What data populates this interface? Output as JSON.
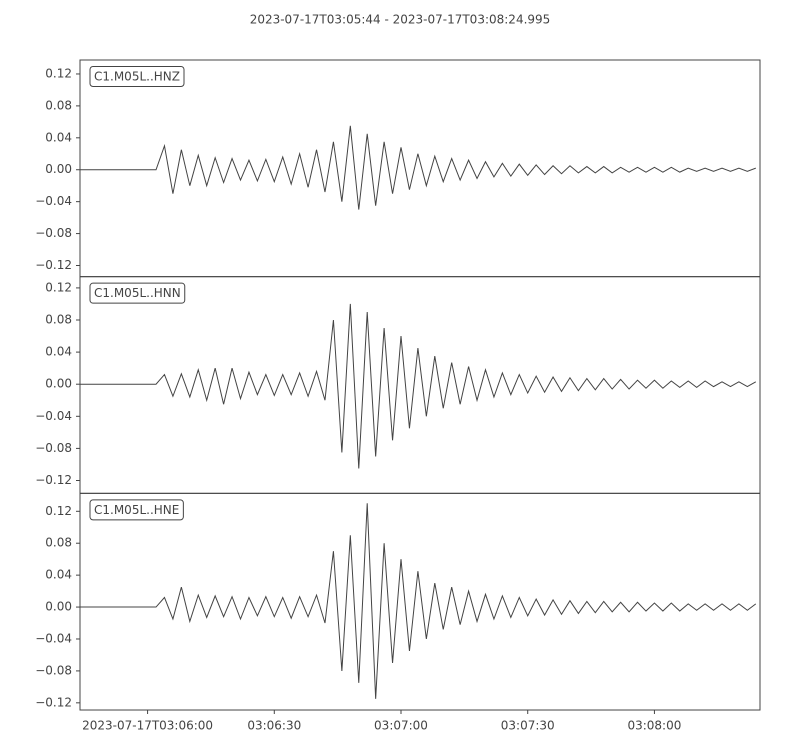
{
  "chart_data": {
    "type": "line",
    "title": "2023-07-17T03:05:44  -  2023-07-17T03:08:24.995",
    "xlim": [
      "2023-07-17T03:05:44",
      "2023-07-17T03:08:24.995"
    ],
    "xticks": [
      {
        "value": "2023-07-17T03:06:00",
        "label": "2023-07-17T03:06:00"
      },
      {
        "value": "2023-07-17T03:06:30",
        "label": "03:06:30"
      },
      {
        "value": "2023-07-17T03:07:00",
        "label": "03:07:00"
      },
      {
        "value": "2023-07-17T03:07:30",
        "label": "03:07:30"
      },
      {
        "value": "2023-07-17T03:08:00",
        "label": "03:08:00"
      }
    ],
    "x": [
      "2023-07-17T03:05:44",
      "2023-07-17T03:05:46",
      "2023-07-17T03:05:48",
      "2023-07-17T03:05:50",
      "2023-07-17T03:05:52",
      "2023-07-17T03:05:54",
      "2023-07-17T03:05:56",
      "2023-07-17T03:05:58",
      "2023-07-17T03:06:00",
      "2023-07-17T03:06:02",
      "2023-07-17T03:06:04",
      "2023-07-17T03:06:06",
      "2023-07-17T03:06:08",
      "2023-07-17T03:06:10",
      "2023-07-17T03:06:12",
      "2023-07-17T03:06:14",
      "2023-07-17T03:06:16",
      "2023-07-17T03:06:18",
      "2023-07-17T03:06:20",
      "2023-07-17T03:06:22",
      "2023-07-17T03:06:24",
      "2023-07-17T03:06:26",
      "2023-07-17T03:06:28",
      "2023-07-17T03:06:30",
      "2023-07-17T03:06:32",
      "2023-07-17T03:06:34",
      "2023-07-17T03:06:36",
      "2023-07-17T03:06:38",
      "2023-07-17T03:06:40",
      "2023-07-17T03:06:42",
      "2023-07-17T03:06:44",
      "2023-07-17T03:06:46",
      "2023-07-17T03:06:48",
      "2023-07-17T03:06:50",
      "2023-07-17T03:06:52",
      "2023-07-17T03:06:54",
      "2023-07-17T03:06:56",
      "2023-07-17T03:06:58",
      "2023-07-17T03:07:00",
      "2023-07-17T03:07:02",
      "2023-07-17T03:07:04",
      "2023-07-17T03:07:06",
      "2023-07-17T03:07:08",
      "2023-07-17T03:07:10",
      "2023-07-17T03:07:12",
      "2023-07-17T03:07:14",
      "2023-07-17T03:07:16",
      "2023-07-17T03:07:18",
      "2023-07-17T03:07:20",
      "2023-07-17T03:07:22",
      "2023-07-17T03:07:24",
      "2023-07-17T03:07:26",
      "2023-07-17T03:07:28",
      "2023-07-17T03:07:30",
      "2023-07-17T03:07:32",
      "2023-07-17T03:07:34",
      "2023-07-17T03:07:36",
      "2023-07-17T03:07:38",
      "2023-07-17T03:07:40",
      "2023-07-17T03:07:42",
      "2023-07-17T03:07:44",
      "2023-07-17T03:07:46",
      "2023-07-17T03:07:48",
      "2023-07-17T03:07:50",
      "2023-07-17T03:07:52",
      "2023-07-17T03:07:54",
      "2023-07-17T03:07:56",
      "2023-07-17T03:07:58",
      "2023-07-17T03:08:00",
      "2023-07-17T03:08:02",
      "2023-07-17T03:08:04",
      "2023-07-17T03:08:06",
      "2023-07-17T03:08:08",
      "2023-07-17T03:08:10",
      "2023-07-17T03:08:12",
      "2023-07-17T03:08:14",
      "2023-07-17T03:08:16",
      "2023-07-17T03:08:18",
      "2023-07-17T03:08:20",
      "2023-07-17T03:08:22",
      "2023-07-17T03:08:24"
    ],
    "series": [
      {
        "name": "C1.M05L..HNZ",
        "color": "#444444",
        "ylim": [
          -0.134,
          0.1375
        ],
        "yticks": [
          {
            "value": -0.12,
            "label": "−0.12"
          },
          {
            "value": -0.08,
            "label": "−0.08"
          },
          {
            "value": -0.04,
            "label": "−0.04"
          },
          {
            "value": 0,
            "label": "0.00"
          },
          0.04,
          0.08,
          0.12
        ],
        "values": [
          0,
          0,
          0,
          0,
          0,
          0,
          0,
          0,
          0,
          0,
          0.03,
          -0.03,
          0.025,
          -0.02,
          0.018,
          -0.02,
          0.015,
          -0.016,
          0.014,
          -0.013,
          0.012,
          -0.014,
          0.013,
          -0.015,
          0.016,
          -0.018,
          0.02,
          -0.022,
          0.025,
          -0.028,
          0.035,
          -0.04,
          0.055,
          -0.05,
          0.045,
          -0.045,
          0.035,
          -0.03,
          0.028,
          -0.025,
          0.02,
          -0.02,
          0.017,
          -0.015,
          0.014,
          -0.013,
          0.012,
          -0.011,
          0.01,
          -0.009,
          0.008,
          -0.008,
          0.007,
          -0.007,
          0.006,
          -0.006,
          0.005,
          -0.005,
          0.005,
          -0.004,
          0.004,
          -0.004,
          0.004,
          -0.004,
          0.003,
          -0.003,
          0.003,
          -0.003,
          0.003,
          -0.003,
          0.003,
          -0.003,
          0.002,
          -0.002,
          0.002,
          -0.002,
          0.002,
          -0.002,
          0.002,
          -0.002,
          0.002
        ]
      },
      {
        "name": "C1.M05L..HNN",
        "color": "#444444",
        "ylim": [
          -0.136,
          0.134
        ],
        "yticks": [
          {
            "value": -0.12,
            "label": "−0.12"
          },
          {
            "value": -0.08,
            "label": "−0.08"
          },
          {
            "value": -0.04,
            "label": "−0.04"
          },
          {
            "value": 0,
            "label": "0.00"
          },
          0.04,
          0.08,
          0.12
        ],
        "values": [
          0,
          0,
          0,
          0,
          0,
          0,
          0,
          0,
          0,
          0,
          0.012,
          -0.015,
          0.013,
          -0.016,
          0.018,
          -0.02,
          0.02,
          -0.025,
          0.02,
          -0.018,
          0.015,
          -0.013,
          0.012,
          -0.014,
          0.012,
          -0.013,
          0.014,
          -0.015,
          0.016,
          -0.02,
          0.08,
          -0.085,
          0.1,
          -0.105,
          0.09,
          -0.09,
          0.07,
          -0.07,
          0.06,
          -0.055,
          0.045,
          -0.04,
          0.035,
          -0.03,
          0.027,
          -0.025,
          0.022,
          -0.02,
          0.018,
          -0.016,
          0.014,
          -0.013,
          0.012,
          -0.011,
          0.01,
          -0.01,
          0.009,
          -0.009,
          0.008,
          -0.008,
          0.007,
          -0.007,
          0.007,
          -0.006,
          0.006,
          -0.006,
          0.005,
          -0.005,
          0.005,
          -0.005,
          0.004,
          -0.004,
          0.004,
          -0.004,
          0.004,
          -0.003,
          0.003,
          -0.003,
          0.003,
          -0.003,
          0.003
        ]
      },
      {
        "name": "C1.M05L..HNE",
        "color": "#444444",
        "ylim": [
          -0.129,
          0.1425
        ],
        "yticks": [
          {
            "value": -0.12,
            "label": "−0.12"
          },
          {
            "value": -0.08,
            "label": "−0.08"
          },
          {
            "value": -0.04,
            "label": "−0.04"
          },
          {
            "value": 0,
            "label": "0.00"
          },
          0.04,
          0.08,
          0.12
        ],
        "values": [
          0,
          0,
          0,
          0,
          0,
          0,
          0,
          0,
          0,
          0,
          0.012,
          -0.015,
          0.025,
          -0.018,
          0.015,
          -0.013,
          0.014,
          -0.012,
          0.013,
          -0.015,
          0.012,
          -0.011,
          0.013,
          -0.012,
          0.012,
          -0.014,
          0.013,
          -0.012,
          0.015,
          -0.02,
          0.07,
          -0.08,
          0.09,
          -0.095,
          0.13,
          -0.115,
          0.08,
          -0.07,
          0.06,
          -0.055,
          0.045,
          -0.04,
          0.03,
          -0.028,
          0.025,
          -0.022,
          0.02,
          -0.018,
          0.016,
          -0.015,
          0.014,
          -0.013,
          0.012,
          -0.011,
          0.01,
          -0.01,
          0.009,
          -0.009,
          0.008,
          -0.008,
          0.007,
          -0.007,
          0.007,
          -0.006,
          0.006,
          -0.006,
          0.006,
          -0.005,
          0.005,
          -0.005,
          0.005,
          -0.005,
          0.004,
          -0.004,
          0.004,
          -0.004,
          0.004,
          -0.004,
          0.004,
          -0.004,
          0.004
        ]
      }
    ]
  }
}
